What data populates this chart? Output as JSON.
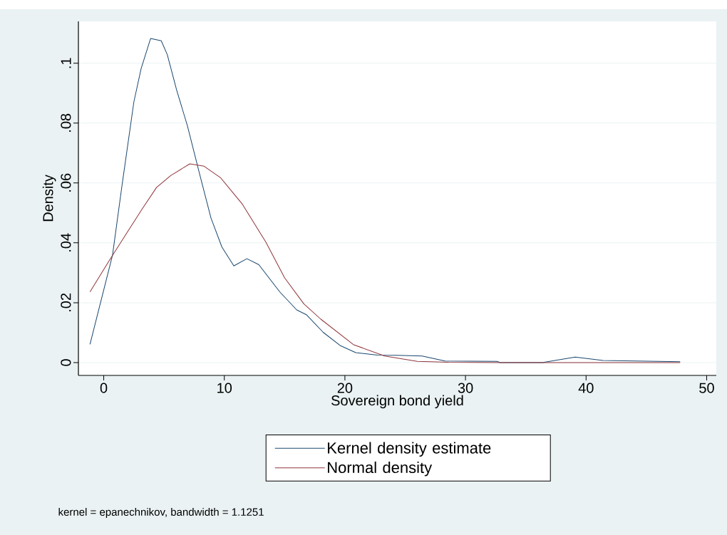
{
  "chart_data": {
    "type": "line",
    "xlabel": "Sovereign bond yield",
    "ylabel": "Density",
    "xlim": [
      -2.1,
      50.8
    ],
    "ylim": [
      -0.0043,
      0.114
    ],
    "xticks": [
      0,
      10,
      20,
      30,
      40,
      50
    ],
    "yticks": [
      0,
      {
        "value": 0.02,
        "label": ".02"
      },
      {
        "value": 0.04,
        "label": ".04"
      },
      {
        "value": 0.06,
        "label": ".06"
      },
      {
        "value": 0.08,
        "label": ".08"
      },
      {
        "value": 0.1,
        "label": ".1"
      }
    ],
    "grid": "y",
    "legend": "bottom",
    "annotations": [
      "kernel = epanechnikov, bandwidth = 1.1251"
    ],
    "series": [
      {
        "name": "Kernel density estimate",
        "color": "#1a476f",
        "x": [
          -1.14,
          0.73,
          1.52,
          2.5,
          3.1,
          3.89,
          4.77,
          5.27,
          6.05,
          6.94,
          7.93,
          8.9,
          9.8,
          10.79,
          11.87,
          12.86,
          14.6,
          16.0,
          16.8,
          18.2,
          19.6,
          20.9,
          22.7,
          24.3,
          26.4,
          28.3,
          32.6,
          32.9,
          36.4,
          39.1,
          41.4,
          47.8
        ],
        "values": [
          0.0061,
          0.0359,
          0.0593,
          0.0871,
          0.0982,
          0.1083,
          0.1075,
          0.1029,
          0.091,
          0.0791,
          0.0633,
          0.0482,
          0.0386,
          0.0323,
          0.0347,
          0.0327,
          0.0236,
          0.0176,
          0.016,
          0.0101,
          0.0057,
          0.0033,
          0.0025,
          0.0024,
          0.0022,
          0.0005,
          0.0004,
          0,
          0,
          0.0018,
          0.0007,
          0.0003
        ]
      },
      {
        "name": "Normal density",
        "color": "#90353b",
        "x": [
          -1.14,
          0.43,
          1.8,
          3.2,
          4.38,
          5.56,
          7.14,
          8.32,
          9.7,
          11.5,
          13.45,
          15.0,
          16.6,
          18.0,
          20.7,
          23.3,
          26.0,
          28.6,
          33.0,
          38.0,
          47.8
        ],
        "values": [
          0.0236,
          0.0339,
          0.0426,
          0.0514,
          0.0585,
          0.0625,
          0.0664,
          0.0656,
          0.0617,
          0.0529,
          0.0402,
          0.0283,
          0.0196,
          0.0145,
          0.006,
          0.0022,
          0.0004,
          0.0001,
          0,
          0,
          0
        ]
      }
    ]
  }
}
